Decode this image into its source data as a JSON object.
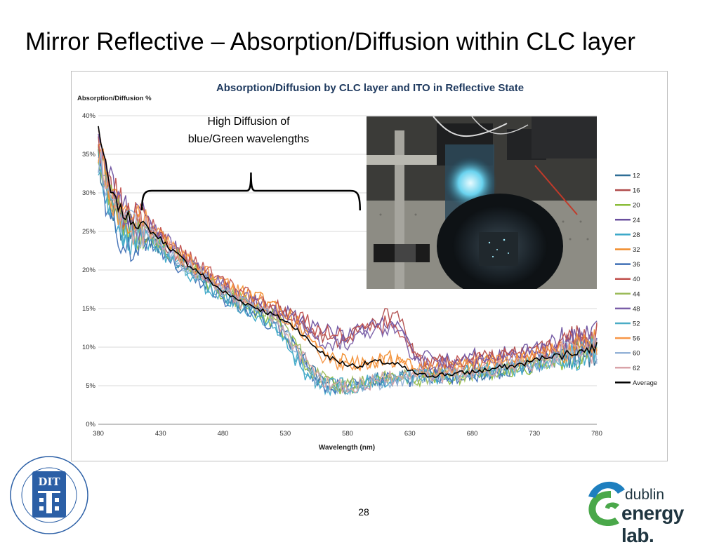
{
  "slide": {
    "title": "Mirror Reflective – Absorption/Diffusion within CLC layer",
    "page_number": "28"
  },
  "logos": {
    "dit_text": "DIT",
    "dit_ring_text": "DUBLIN INSTITUTE OF TECHNOLOGY · INSTITIÚID TEICNEOLAÍOCHTA ÁTHA CLIATH",
    "del_line1": "dublin",
    "del_line2": "energy lab."
  },
  "colors": {
    "accent_green": "#4aa84a",
    "accent_blue": "#1e7fbf",
    "logo_dark": "#1f3540",
    "dit_blue": "#2b5fa6"
  },
  "chart_data": {
    "type": "line",
    "title": "Absorption/Diffusion by CLC layer and ITO in Reflective State",
    "ylabel": "Absorption/Diffusion  %",
    "xlabel": "Wavelength (nm)",
    "xlim": [
      380,
      780
    ],
    "ylim": [
      0,
      40
    ],
    "x_ticks": [
      "380",
      "430",
      "480",
      "530",
      "580",
      "630",
      "680",
      "730",
      "780"
    ],
    "y_ticks": [
      "0%",
      "5%",
      "10%",
      "15%",
      "20%",
      "25%",
      "30%",
      "35%",
      "40%"
    ],
    "grid": true,
    "legend_position": "right",
    "x": [
      380,
      390,
      400,
      410,
      420,
      430,
      440,
      450,
      460,
      470,
      480,
      490,
      500,
      510,
      520,
      530,
      540,
      550,
      560,
      570,
      580,
      590,
      600,
      610,
      620,
      630,
      640,
      650,
      660,
      670,
      680,
      690,
      700,
      710,
      720,
      730,
      740,
      750,
      760,
      770,
      780
    ],
    "average": [
      38.5,
      30,
      27.2,
      26.2,
      25.3,
      24,
      22.5,
      21,
      19.8,
      18.5,
      17.2,
      16.3,
      15.6,
      14.9,
      14.2,
      13.4,
      12.3,
      10.6,
      9.2,
      8.3,
      7.7,
      7.6,
      8.1,
      8.0,
      7.7,
      6.9,
      6.3,
      6.4,
      6.5,
      6.6,
      6.8,
      7.0,
      7.3,
      7.5,
      7.8,
      8.3,
      8.8,
      9.0,
      9.3,
      9.6,
      10.0
    ],
    "series": [
      {
        "name": "12",
        "color": "#2f6e96",
        "values": [
          34,
          29,
          25,
          23.5,
          24,
          23,
          21.5,
          20.5,
          19,
          18,
          17,
          16,
          15.5,
          14.5,
          14,
          12.5,
          10,
          7,
          5.5,
          5,
          5,
          5.2,
          5.5,
          5.8,
          6,
          6,
          6.2,
          6.3,
          6.5,
          6.5,
          6.7,
          6.8,
          7,
          7.2,
          7.5,
          7.8,
          8.2,
          8.5,
          8.8,
          9.2,
          9.5
        ]
      },
      {
        "name": "16",
        "color": "#b04b4b",
        "values": [
          36,
          30,
          27,
          26,
          25,
          24,
          22.5,
          21,
          20,
          18.5,
          17.5,
          16.5,
          16,
          15.5,
          15,
          14.5,
          13.5,
          12.5,
          11.5,
          11,
          11.5,
          12,
          13,
          14,
          14.5,
          10,
          8,
          8,
          8,
          8.2,
          8.4,
          8.6,
          8.8,
          9,
          9.2,
          9.6,
          10,
          10.4,
          10.8,
          11.2,
          11.5
        ]
      },
      {
        "name": "20",
        "color": "#8bbd3b",
        "values": [
          35,
          29,
          26,
          25,
          24.5,
          23.5,
          22,
          20.5,
          19.5,
          18,
          17,
          16,
          15.2,
          14.5,
          13.5,
          12,
          9.5,
          7,
          5.5,
          5,
          4.8,
          5,
          5.2,
          5.5,
          5.7,
          5.8,
          6,
          6,
          6.2,
          6.3,
          6.5,
          6.6,
          6.8,
          7,
          7.3,
          7.6,
          8,
          8.3,
          8.6,
          9,
          9.3
        ]
      },
      {
        "name": "24",
        "color": "#6a4f9e",
        "values": [
          37,
          31,
          28,
          27,
          26,
          24.5,
          23,
          21.5,
          20,
          19,
          17.5,
          16.8,
          16,
          15.5,
          15,
          14.5,
          13.8,
          13,
          12.5,
          12,
          11.5,
          12,
          12.5,
          13.5,
          13.5,
          10,
          8.5,
          8.5,
          8.5,
          8.6,
          8.8,
          9,
          9.2,
          9.4,
          9.6,
          10,
          10.4,
          10.8,
          11.2,
          11.6,
          12
        ]
      },
      {
        "name": "28",
        "color": "#3aa8c8",
        "values": [
          34,
          28,
          25,
          24,
          23.5,
          22.5,
          21,
          20,
          18.8,
          17.5,
          16.5,
          15.8,
          15,
          14,
          13,
          11,
          8,
          6,
          5,
          4.8,
          5,
          5.2,
          5.5,
          5.8,
          6,
          6,
          6.2,
          6.2,
          6.4,
          6.5,
          6.6,
          6.8,
          7,
          7.2,
          7.4,
          7.8,
          8.2,
          8.5,
          8.8,
          9.1,
          9.4
        ]
      },
      {
        "name": "32",
        "color": "#f08c2a",
        "values": [
          36,
          30,
          27,
          26,
          25.5,
          24.5,
          23,
          21.5,
          20.5,
          19.5,
          18.5,
          17.5,
          16.8,
          16.2,
          15.5,
          14.5,
          13,
          11,
          9.5,
          8.5,
          8,
          8,
          8.2,
          8.5,
          8.4,
          7.5,
          7.2,
          7.2,
          7.3,
          7.5,
          7.7,
          7.9,
          8.1,
          8.3,
          8.5,
          8.9,
          9.3,
          9.6,
          9.9,
          10.2,
          10.5
        ]
      },
      {
        "name": "36",
        "color": "#3f6fb5",
        "values": [
          33,
          27,
          24,
          23,
          23.5,
          22.5,
          21,
          20,
          18.5,
          17.5,
          16.5,
          15.5,
          14.8,
          14,
          13,
          11.5,
          9,
          6.5,
          5.2,
          4.8,
          4.8,
          5,
          5.3,
          5.6,
          5.8,
          5.9,
          6,
          6.1,
          6.3,
          6.4,
          6.5,
          6.7,
          6.9,
          7.1,
          7.4,
          7.7,
          8.1,
          8.4,
          8.7,
          9,
          9.3
        ]
      },
      {
        "name": "40",
        "color": "#c0504d",
        "values": [
          37,
          31,
          28,
          27,
          26,
          25,
          23.5,
          22,
          20.5,
          19.5,
          18.5,
          17.5,
          16.8,
          16,
          15.3,
          14.8,
          14,
          13,
          12,
          11.5,
          11.5,
          12,
          12.5,
          13,
          13,
          9.5,
          8,
          7.8,
          7.8,
          8,
          8.2,
          8.4,
          8.6,
          8.8,
          9,
          9.4,
          9.8,
          10.2,
          10.6,
          11,
          11.3
        ]
      },
      {
        "name": "44",
        "color": "#9bbb59",
        "values": [
          35,
          29,
          26,
          25,
          24.5,
          23.5,
          22,
          21,
          19.8,
          18.5,
          17.2,
          16.2,
          15.5,
          14.6,
          13.8,
          12.2,
          9.8,
          7.2,
          5.8,
          5.2,
          5,
          5.2,
          5.5,
          5.8,
          6,
          6.1,
          6.2,
          6.3,
          6.5,
          6.6,
          6.8,
          7,
          7.2,
          7.4,
          7.6,
          8,
          8.4,
          8.7,
          9,
          9.4,
          9.7
        ]
      },
      {
        "name": "48",
        "color": "#7a5ea8",
        "values": [
          36,
          30,
          27,
          26,
          25.5,
          24.5,
          23,
          21.5,
          20.2,
          19,
          17.8,
          16.8,
          16.2,
          15.5,
          14.8,
          14,
          13,
          12,
          11,
          10.5,
          10.5,
          11,
          11.5,
          12.5,
          12.5,
          9.5,
          8,
          7.8,
          7.8,
          8,
          8.1,
          8.3,
          8.5,
          8.7,
          8.9,
          9.3,
          9.7,
          10.1,
          10.5,
          10.9,
          11.2
        ]
      },
      {
        "name": "52",
        "color": "#4bacc6",
        "values": [
          34,
          28,
          25,
          24,
          23.8,
          22.8,
          21.3,
          20.3,
          19,
          17.8,
          16.8,
          15.8,
          15.1,
          14.3,
          13.3,
          11.5,
          8.5,
          6.2,
          5.2,
          4.9,
          5,
          5.2,
          5.4,
          5.7,
          5.9,
          6,
          6.1,
          6.2,
          6.4,
          6.5,
          6.6,
          6.8,
          7,
          7.2,
          7.4,
          7.8,
          8.2,
          8.5,
          8.8,
          9.2,
          9.5
        ]
      },
      {
        "name": "56",
        "color": "#f79646",
        "values": [
          36,
          30,
          27,
          26.2,
          25.4,
          24.3,
          22.8,
          21.4,
          20.3,
          19.2,
          18.2,
          17.3,
          16.6,
          15.9,
          15.1,
          14,
          12.5,
          10.5,
          9,
          8.2,
          7.8,
          7.8,
          8,
          8.3,
          8.2,
          7.3,
          7,
          7.1,
          7.2,
          7.4,
          7.6,
          7.8,
          8,
          8.2,
          8.4,
          8.8,
          9.2,
          9.5,
          9.8,
          10.1,
          10.4
        ]
      },
      {
        "name": "60",
        "color": "#95b3d7",
        "values": [
          35,
          29,
          26,
          25.2,
          24.6,
          23.4,
          21.9,
          20.7,
          19.4,
          18.2,
          17,
          16,
          15.3,
          14.5,
          13.5,
          11.8,
          9,
          6.6,
          5.4,
          5,
          4.9,
          5.1,
          5.4,
          5.7,
          5.9,
          6,
          6.1,
          6.2,
          6.4,
          6.5,
          6.7,
          6.9,
          7.1,
          7.3,
          7.5,
          7.9,
          8.3,
          8.6,
          8.9,
          9.2,
          9.5
        ]
      },
      {
        "name": "62",
        "color": "#d9a3a8",
        "values": [
          36,
          29.5,
          26.5,
          25.5,
          24.8,
          23.8,
          22.3,
          21,
          19.7,
          18.4,
          17.3,
          16.3,
          15.6,
          14.8,
          13.9,
          12.3,
          9.6,
          7,
          5.6,
          5.1,
          5,
          5.2,
          5.5,
          5.8,
          6,
          6.1,
          6.2,
          6.3,
          6.5,
          6.6,
          6.8,
          7,
          7.2,
          7.4,
          7.6,
          8,
          8.4,
          8.7,
          9,
          9.4,
          9.7
        ]
      }
    ],
    "average_label": "Average",
    "average_color": "#000000",
    "annotation": {
      "text_line1": "High Diffusion of",
      "text_line2": "blue/Green wavelengths",
      "brace_from": 415,
      "brace_to": 590
    }
  }
}
